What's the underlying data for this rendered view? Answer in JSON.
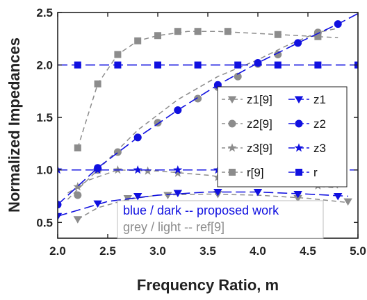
{
  "chart_data": {
    "type": "line",
    "title": "",
    "xlabel": "Frequency Ratio, m",
    "ylabel": "Normalized Impedances",
    "xlim": [
      2.0,
      5.0
    ],
    "ylim": [
      0.35,
      2.5
    ],
    "xticks": [
      "2.0",
      "2.5",
      "3.0",
      "3.5",
      "4.0",
      "4.5",
      "5.0"
    ],
    "yticks": [
      "0.5",
      "1.0",
      "1.5",
      "2.0",
      "2.5"
    ],
    "xtick_values": [
      2.0,
      2.5,
      3.0,
      3.5,
      4.0,
      4.5,
      5.0
    ],
    "ytick_values": [
      0.5,
      1.0,
      1.5,
      2.0,
      2.5
    ],
    "grid": false,
    "legend_position": "center-right",
    "colors": {
      "proposed": "#1010e0",
      "reference": "#8c8c8c"
    },
    "series": [
      {
        "name": "z1[9]",
        "group": "reference",
        "marker": "triangle-down",
        "line_x": [
          2.2,
          2.4,
          2.7,
          3.0,
          3.5,
          4.0,
          4.5,
          4.9
        ],
        "line_y": [
          0.53,
          0.64,
          0.72,
          0.76,
          0.77,
          0.76,
          0.73,
          0.69
        ],
        "marker_x": [
          2.2,
          2.7,
          3.1,
          3.6,
          4.4,
          4.9
        ],
        "marker_y": [
          0.53,
          0.73,
          0.76,
          0.77,
          0.73,
          0.7
        ]
      },
      {
        "name": "z1",
        "group": "proposed",
        "marker": "triangle-down",
        "line_x": [
          2.0,
          2.5,
          3.0,
          3.5,
          4.0,
          4.5,
          4.9
        ],
        "line_y": [
          0.56,
          0.7,
          0.76,
          0.79,
          0.79,
          0.77,
          0.75
        ],
        "marker_x": [
          2.0,
          2.4,
          2.8,
          3.2,
          3.6,
          4.0,
          4.4,
          4.8
        ],
        "marker_y": [
          0.56,
          0.68,
          0.75,
          0.78,
          0.79,
          0.79,
          0.77,
          0.75
        ]
      },
      {
        "name": "z2[9]",
        "group": "reference",
        "marker": "circle",
        "line_x": [
          2.1,
          2.4,
          2.8,
          3.2,
          3.6,
          4.0,
          4.3,
          4.6,
          4.8
        ],
        "line_y": [
          0.72,
          1.0,
          1.38,
          1.67,
          1.89,
          2.05,
          2.19,
          2.31,
          2.35
        ],
        "marker_x": [
          2.2,
          2.4,
          2.6,
          2.8,
          3.0,
          3.2,
          3.4,
          3.6,
          3.8,
          4.0,
          4.2,
          4.6
        ],
        "marker_y": [
          0.76,
          1.0,
          1.17,
          1.31,
          1.45,
          1.57,
          1.68,
          1.79,
          1.89,
          2.01,
          2.1,
          2.31
        ]
      },
      {
        "name": "z2",
        "group": "proposed",
        "marker": "circle",
        "line_x": [
          2.0,
          2.4,
          2.8,
          3.2,
          3.6,
          4.0,
          4.4,
          4.8,
          5.0
        ],
        "line_y": [
          0.67,
          1.02,
          1.31,
          1.57,
          1.81,
          2.02,
          2.21,
          2.39,
          2.49
        ],
        "marker_x": [
          2.0,
          2.4,
          2.8,
          3.2,
          3.6,
          4.0,
          4.4,
          4.8
        ],
        "marker_y": [
          0.67,
          1.02,
          1.31,
          1.57,
          1.81,
          2.02,
          2.21,
          2.39
        ]
      },
      {
        "name": "z3[9]",
        "group": "reference",
        "marker": "star",
        "line_x": [
          2.1,
          2.3,
          2.6,
          3.0,
          3.5,
          4.0,
          4.5,
          4.8
        ],
        "line_y": [
          0.78,
          0.9,
          1.0,
          0.99,
          0.95,
          0.89,
          0.85,
          0.83
        ],
        "marker_x": [
          2.2,
          2.6,
          2.9,
          3.2,
          3.6,
          4.0,
          4.6
        ],
        "marker_y": [
          0.84,
          1.0,
          0.99,
          0.97,
          0.93,
          0.89,
          0.85
        ]
      },
      {
        "name": "z3",
        "group": "proposed",
        "marker": "star",
        "line_x": [
          2.0,
          5.0
        ],
        "line_y": [
          1.0,
          1.0
        ],
        "marker_x": [
          2.0,
          2.4,
          2.8,
          3.2,
          3.6,
          4.0,
          4.4,
          4.8
        ],
        "marker_y": [
          1.0,
          1.0,
          1.0,
          1.0,
          1.0,
          1.0,
          1.0,
          1.0
        ]
      },
      {
        "name": "r[9]",
        "group": "reference",
        "marker": "square",
        "line_x": [
          2.2,
          2.4,
          2.6,
          2.8,
          3.0,
          3.3,
          3.6,
          4.0,
          4.4,
          4.8
        ],
        "line_y": [
          1.21,
          1.82,
          2.1,
          2.23,
          2.28,
          2.32,
          2.32,
          2.3,
          2.28,
          2.26
        ],
        "marker_x": [
          2.2,
          2.4,
          2.6,
          2.8,
          3.0,
          3.2,
          3.4,
          3.7,
          4.2,
          4.6
        ],
        "marker_y": [
          1.21,
          1.82,
          2.1,
          2.23,
          2.28,
          2.32,
          2.32,
          2.32,
          2.29,
          2.27
        ]
      },
      {
        "name": "r",
        "group": "proposed",
        "marker": "square",
        "line_x": [
          2.0,
          5.0
        ],
        "line_y": [
          2.0,
          2.0
        ],
        "marker_x": [
          2.2,
          2.6,
          3.0,
          3.4,
          3.8,
          4.2,
          4.6,
          5.0
        ],
        "marker_y": [
          2.0,
          2.0,
          2.0,
          2.0,
          2.0,
          2.0,
          2.0,
          2.0
        ]
      }
    ],
    "annotations": [
      {
        "text": "blue / dark -- proposed work",
        "group": "proposed"
      },
      {
        "text": "grey / light -- ref[9]",
        "group": "reference"
      }
    ]
  }
}
